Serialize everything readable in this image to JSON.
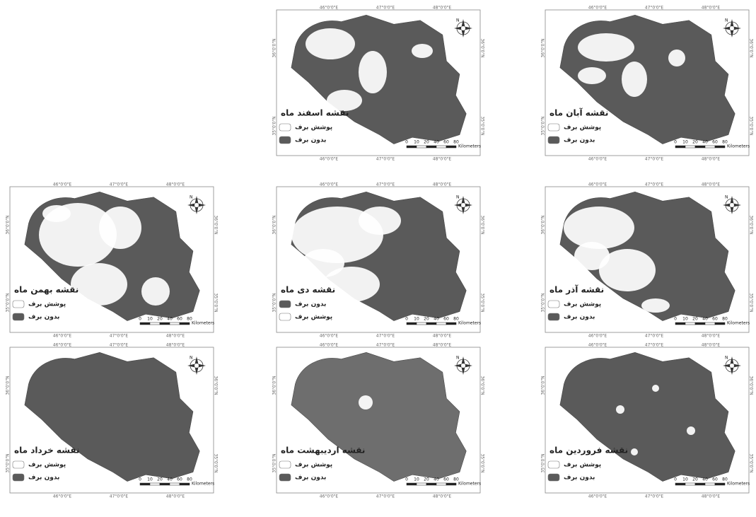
{
  "maps": [
    {
      "title": "نقشه اسفند ماه",
      "legend": [
        {
          "label": "پوشش برف",
          "color": "#ffffff"
        },
        {
          "label": "بدون برف",
          "color": "#5a5a5a"
        }
      ]
    },
    {
      "title": "نقشه آبان ماه",
      "legend": [
        {
          "label": "پوشش برف",
          "color": "#ffffff"
        },
        {
          "label": "بدون برف",
          "color": "#5a5a5a"
        }
      ]
    },
    {
      "title": "نقشه بهمن ماه",
      "legend": [
        {
          "label": "پوشش برف",
          "color": "#ffffff"
        },
        {
          "label": "بدون برف",
          "color": "#5a5a5a"
        }
      ]
    },
    {
      "title": "نقشه دی ماه",
      "legend": [
        {
          "label": "بدون برف",
          "color": "#5a5a5a"
        },
        {
          "label": "پوشش برف",
          "color": "#ffffff"
        }
      ]
    },
    {
      "title": "نقشه آذر ماه",
      "legend": [
        {
          "label": "پوشش برف",
          "color": "#ffffff"
        },
        {
          "label": "بدون برف",
          "color": "#5a5a5a"
        }
      ]
    },
    {
      "title": "نقشه خرداد ماه",
      "legend": [
        {
          "label": "پوشش برف",
          "color": "#ffffff"
        },
        {
          "label": "بدون برف",
          "color": "#5a5a5a"
        }
      ]
    },
    {
      "title": "نقشه اردیبهشت ماه",
      "legend": [
        {
          "label": "پوشش برف",
          "color": "#ffffff"
        },
        {
          "label": "بدون برف",
          "color": "#5a5a5a"
        }
      ]
    },
    {
      "title": "نقشه فروردین ماه",
      "legend": [
        {
          "label": "پوشش برف",
          "color": "#ffffff"
        },
        {
          "label": "بدون برف",
          "color": "#5a5a5a"
        }
      ]
    }
  ],
  "graticule": {
    "x": [
      "46°0'0\"E",
      "47°0'0\"E",
      "48°0'0\"E"
    ],
    "y": [
      "36°0'0\"N",
      "35°0'0\"N"
    ]
  },
  "scale_bar": {
    "ticks": [
      "0",
      "10",
      "20",
      "40",
      "60",
      "80"
    ],
    "unit": "Kilometers"
  },
  "north": "N"
}
